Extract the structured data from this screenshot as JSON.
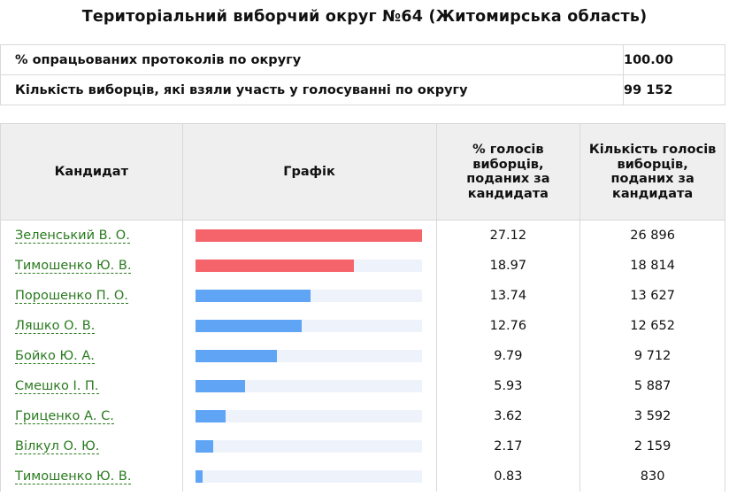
{
  "title": "Територіальний виборчий округ №64 (Житомирська область)",
  "summary": [
    {
      "label": "% опрацьованих протоколів по округу",
      "value": "100.00"
    },
    {
      "label": "Кількість виборців, які взяли участь у голосуванні по округу",
      "value": "99 152"
    }
  ],
  "columns": [
    "Кандидат",
    "Графік",
    "% голосів виборців, поданих за кандидата",
    "Кількість голосів виборців, поданих за кандидата"
  ],
  "colors": {
    "top_two": "#f5636b",
    "others": "#5fa4f5",
    "track": "#eef3fb",
    "link": "#2a7a1f"
  },
  "chart_data": {
    "type": "bar",
    "categories": [
      "Зеленський В. О.",
      "Тимошенко Ю. В.",
      "Порошенко П. О.",
      "Ляшко О. В.",
      "Бойко Ю. А.",
      "Смешко І. П.",
      "Гриценко А. С.",
      "Вілкул О. Ю.",
      "Тимошенко Ю. В."
    ],
    "values": [
      27.12,
      18.97,
      13.74,
      12.76,
      9.79,
      5.93,
      3.62,
      2.17,
      0.83
    ],
    "percent_labels": [
      "27.12",
      "18.97",
      "13.74",
      "12.76",
      "9.79",
      "5.93",
      "3.62",
      "2.17",
      "0.83"
    ],
    "vote_labels": [
      "26 896",
      "18 814",
      "13 627",
      "12 652",
      "9 712",
      "5 887",
      "3 592",
      "2 159",
      "830"
    ],
    "xlim": [
      0,
      27.12
    ]
  }
}
